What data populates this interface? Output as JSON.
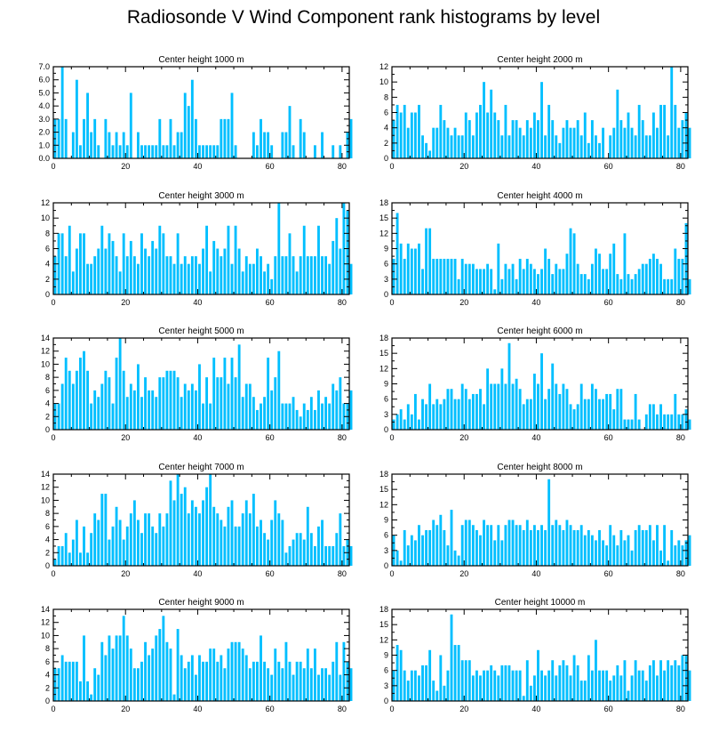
{
  "title": "Radiosonde V Wind Component rank histograms by level",
  "bar_color": "#00bfff",
  "chart_data": [
    {
      "type": "bar",
      "title": "Center height 1000 m",
      "xlim": [
        0,
        82
      ],
      "xticks": [
        0,
        20,
        40,
        60,
        80
      ],
      "ylim": [
        0,
        7
      ],
      "yticks": [
        0,
        1,
        2,
        3,
        4,
        5,
        6,
        7
      ],
      "ytick_labels": [
        "0.0",
        "1.0",
        "2.0",
        "3.0",
        "4.0",
        "5.0",
        "6.0",
        "7.0"
      ],
      "values": [
        3,
        3,
        7,
        3,
        0,
        2,
        6,
        1,
        3,
        5,
        2,
        3,
        1,
        0,
        3,
        2,
        1,
        2,
        1,
        2,
        1,
        5,
        0,
        2,
        1,
        1,
        1,
        1,
        1,
        3,
        1,
        1,
        3,
        1,
        2,
        2,
        5,
        4,
        6,
        3,
        1,
        1,
        1,
        1,
        1,
        1,
        3,
        3,
        3,
        5,
        1,
        0,
        0,
        0,
        0,
        2,
        1,
        3,
        2,
        2,
        1,
        0,
        0,
        2,
        2,
        4,
        1,
        0,
        3,
        2,
        0,
        0,
        1,
        0,
        2,
        0,
        0,
        1,
        0,
        1,
        0,
        2,
        3
      ]
    },
    {
      "type": "bar",
      "title": "Center height 2000 m",
      "xlim": [
        0,
        82
      ],
      "xticks": [
        0,
        20,
        40,
        60,
        80
      ],
      "ylim": [
        0,
        12
      ],
      "yticks": [
        0,
        2,
        4,
        6,
        8,
        10,
        12
      ],
      "ytick_labels": [
        "0",
        "2",
        "4",
        "6",
        "8",
        "10",
        "12"
      ],
      "values": [
        5,
        7,
        6,
        7,
        4,
        6,
        6,
        7,
        3,
        2,
        1,
        4,
        4,
        7,
        5,
        4,
        3,
        4,
        3,
        3,
        6,
        5,
        3,
        6,
        7,
        10,
        6,
        9,
        6,
        5,
        3,
        7,
        3,
        5,
        5,
        4,
        3,
        5,
        4,
        6,
        5,
        10,
        3,
        7,
        5,
        3,
        2,
        4,
        5,
        4,
        4,
        5,
        3,
        6,
        2,
        5,
        3,
        2,
        4,
        0,
        3,
        4,
        9,
        5,
        4,
        6,
        4,
        3,
        7,
        5,
        3,
        3,
        6,
        4,
        7,
        7,
        3,
        12,
        7,
        4,
        5,
        6,
        4
      ]
    },
    {
      "type": "bar",
      "title": "Center height 3000 m",
      "xlim": [
        0,
        82
      ],
      "xticks": [
        0,
        20,
        40,
        60,
        80
      ],
      "ylim": [
        0,
        12
      ],
      "yticks": [
        0,
        2,
        4,
        6,
        8,
        10,
        12
      ],
      "ytick_labels": [
        "0",
        "2",
        "4",
        "6",
        "8",
        "10",
        "12"
      ],
      "values": [
        5,
        8,
        8,
        5,
        9,
        3,
        6,
        8,
        8,
        4,
        4,
        5,
        6,
        9,
        6,
        8,
        7,
        5,
        3,
        8,
        5,
        7,
        5,
        4,
        8,
        6,
        5,
        7,
        6,
        9,
        8,
        5,
        5,
        4,
        8,
        4,
        5,
        4,
        5,
        5,
        4,
        6,
        9,
        3,
        7,
        6,
        5,
        6,
        9,
        4,
        9,
        6,
        3,
        5,
        4,
        4,
        6,
        5,
        3,
        4,
        2,
        5,
        12,
        5,
        5,
        8,
        5,
        3,
        5,
        9,
        5,
        5,
        5,
        9,
        5,
        5,
        4,
        7,
        10,
        6,
        12,
        11,
        4
      ]
    },
    {
      "type": "bar",
      "title": "Center height 4000 m",
      "xlim": [
        0,
        82
      ],
      "xticks": [
        0,
        20,
        40,
        60,
        80
      ],
      "ylim": [
        0,
        18
      ],
      "yticks": [
        0,
        3,
        6,
        9,
        12,
        15,
        18
      ],
      "ytick_labels": [
        "0",
        "3",
        "6",
        "9",
        "12",
        "15",
        "18"
      ],
      "values": [
        7,
        16,
        10,
        7,
        10,
        9,
        9,
        10,
        5,
        13,
        13,
        7,
        7,
        7,
        7,
        7,
        7,
        7,
        3,
        7,
        6,
        6,
        6,
        5,
        5,
        5,
        6,
        5,
        1,
        10,
        3,
        6,
        5,
        6,
        3,
        7,
        5,
        7,
        6,
        5,
        4,
        5,
        9,
        7,
        4,
        6,
        5,
        5,
        8,
        13,
        12,
        6,
        4,
        4,
        3,
        6,
        9,
        8,
        5,
        5,
        8,
        10,
        4,
        3,
        12,
        4,
        3,
        4,
        5,
        6,
        6,
        7,
        8,
        7,
        6,
        3,
        3,
        3,
        9,
        7,
        7,
        14,
        3
      ]
    },
    {
      "type": "bar",
      "title": "Center height 5000 m",
      "xlim": [
        0,
        82
      ],
      "xticks": [
        0,
        20,
        40,
        60,
        80
      ],
      "ylim": [
        0,
        14
      ],
      "yticks": [
        0,
        2,
        4,
        6,
        8,
        10,
        12,
        14
      ],
      "ytick_labels": [
        "0",
        "2",
        "4",
        "6",
        "8",
        "10",
        "12",
        "14"
      ],
      "values": [
        4,
        4,
        7,
        11,
        9,
        7,
        9,
        11,
        12,
        9,
        4,
        6,
        5,
        7,
        9,
        8,
        4,
        11,
        14,
        9,
        5,
        7,
        6,
        10,
        5,
        8,
        6,
        6,
        5,
        8,
        8,
        9,
        9,
        9,
        8,
        5,
        7,
        6,
        7,
        6,
        10,
        4,
        8,
        4,
        11,
        8,
        8,
        11,
        7,
        11,
        8,
        13,
        5,
        7,
        7,
        5,
        3,
        4,
        5,
        11,
        6,
        8,
        12,
        4,
        4,
        4,
        5,
        3,
        2,
        4,
        3,
        5,
        3,
        6,
        4,
        5,
        4,
        7,
        6,
        8,
        4,
        4,
        6
      ]
    },
    {
      "type": "bar",
      "title": "Center height 6000 m",
      "xlim": [
        0,
        82
      ],
      "xticks": [
        0,
        20,
        40,
        60,
        80
      ],
      "ylim": [
        0,
        18
      ],
      "yticks": [
        0,
        3,
        6,
        9,
        12,
        15,
        18
      ],
      "ytick_labels": [
        "0",
        "3",
        "6",
        "9",
        "12",
        "15",
        "18"
      ],
      "values": [
        2,
        3,
        4,
        2,
        5,
        3,
        7,
        2,
        6,
        5,
        9,
        5,
        6,
        5,
        6,
        8,
        8,
        6,
        6,
        9,
        8,
        6,
        7,
        7,
        8,
        5,
        12,
        9,
        9,
        9,
        12,
        9,
        17,
        9,
        10,
        8,
        5,
        6,
        6,
        11,
        9,
        15,
        6,
        8,
        13,
        9,
        7,
        9,
        8,
        5,
        4,
        5,
        9,
        6,
        6,
        9,
        8,
        6,
        6,
        7,
        7,
        4,
        8,
        8,
        2,
        2,
        2,
        7,
        2,
        0,
        3,
        5,
        5,
        3,
        5,
        3,
        3,
        3,
        7,
        3,
        3,
        4,
        2
      ]
    },
    {
      "type": "bar",
      "title": "Center height 7000 m",
      "xlim": [
        0,
        82
      ],
      "xticks": [
        0,
        20,
        40,
        60,
        80
      ],
      "ylim": [
        0,
        14
      ],
      "yticks": [
        0,
        2,
        4,
        6,
        8,
        10,
        12,
        14
      ],
      "ytick_labels": [
        "0",
        "2",
        "4",
        "6",
        "8",
        "10",
        "12",
        "14"
      ],
      "values": [
        1,
        3,
        3,
        5,
        2,
        4,
        7,
        2,
        6,
        2,
        5,
        8,
        7,
        11,
        11,
        4,
        6,
        9,
        7,
        4,
        6,
        8,
        10,
        7,
        5,
        8,
        8,
        6,
        5,
        8,
        6,
        8,
        13,
        10,
        14,
        11,
        12,
        8,
        10,
        9,
        8,
        10,
        12,
        14,
        9,
        8,
        7,
        6,
        9,
        10,
        6,
        6,
        8,
        10,
        8,
        11,
        6,
        7,
        5,
        4,
        7,
        10,
        8,
        7,
        2,
        3,
        4,
        5,
        5,
        4,
        9,
        5,
        3,
        6,
        7,
        3,
        3,
        3,
        5,
        8,
        3,
        4,
        3
      ]
    },
    {
      "type": "bar",
      "title": "Center height 8000 m",
      "xlim": [
        0,
        82
      ],
      "xticks": [
        0,
        20,
        40,
        60,
        80
      ],
      "ylim": [
        0,
        18
      ],
      "yticks": [
        0,
        3,
        6,
        9,
        12,
        15,
        18
      ],
      "ytick_labels": [
        "0",
        "3",
        "6",
        "9",
        "12",
        "15",
        "18"
      ],
      "values": [
        6,
        3,
        1,
        7,
        4,
        6,
        5,
        8,
        6,
        7,
        7,
        9,
        8,
        10,
        7,
        4,
        11,
        3,
        2,
        8,
        9,
        9,
        8,
        7,
        6,
        9,
        8,
        8,
        5,
        8,
        5,
        8,
        9,
        9,
        8,
        8,
        7,
        9,
        7,
        8,
        7,
        8,
        7,
        17,
        8,
        9,
        8,
        7,
        9,
        8,
        7,
        7,
        8,
        6,
        7,
        6,
        5,
        7,
        5,
        4,
        8,
        6,
        4,
        7,
        5,
        6,
        3,
        7,
        8,
        7,
        7,
        8,
        5,
        8,
        3,
        8,
        1,
        7,
        4,
        5,
        4,
        5,
        6
      ]
    },
    {
      "type": "bar",
      "title": "Center height 9000 m",
      "xlim": [
        0,
        82
      ],
      "xticks": [
        0,
        20,
        40,
        60,
        80
      ],
      "ylim": [
        0,
        14
      ],
      "yticks": [
        0,
        2,
        4,
        6,
        8,
        10,
        12,
        14
      ],
      "ytick_labels": [
        "0",
        "2",
        "4",
        "6",
        "8",
        "10",
        "12",
        "14"
      ],
      "values": [
        5,
        5,
        7,
        6,
        6,
        6,
        6,
        3,
        10,
        3,
        1,
        5,
        4,
        9,
        7,
        10,
        8,
        10,
        10,
        13,
        10,
        8,
        5,
        5,
        6,
        9,
        7,
        8,
        10,
        11,
        13,
        9,
        8,
        1,
        11,
        7,
        5,
        6,
        7,
        4,
        7,
        6,
        6,
        8,
        8,
        6,
        7,
        5,
        8,
        9,
        9,
        9,
        8,
        7,
        5,
        6,
        6,
        10,
        6,
        5,
        4,
        8,
        6,
        5,
        9,
        6,
        4,
        6,
        6,
        5,
        8,
        5,
        8,
        4,
        5,
        5,
        4,
        6,
        9,
        4,
        9,
        6,
        5
      ]
    },
    {
      "type": "bar",
      "title": "Center height 10000 m",
      "xlim": [
        0,
        82
      ],
      "xticks": [
        0,
        20,
        40,
        60,
        80
      ],
      "ylim": [
        0,
        18
      ],
      "yticks": [
        0,
        3,
        6,
        9,
        12,
        15,
        18
      ],
      "ytick_labels": [
        "0",
        "3",
        "6",
        "9",
        "12",
        "15",
        "18"
      ],
      "values": [
        6,
        11,
        10,
        6,
        4,
        6,
        6,
        5,
        7,
        7,
        10,
        4,
        2,
        9,
        3,
        6,
        17,
        11,
        11,
        8,
        8,
        8,
        5,
        6,
        5,
        6,
        6,
        7,
        6,
        5,
        7,
        7,
        7,
        6,
        6,
        6,
        1,
        8,
        3,
        5,
        10,
        6,
        5,
        6,
        8,
        5,
        7,
        8,
        7,
        5,
        9,
        7,
        4,
        4,
        9,
        6,
        12,
        6,
        6,
        6,
        4,
        5,
        7,
        5,
        8,
        2,
        5,
        8,
        6,
        6,
        4,
        7,
        8,
        5,
        8,
        6,
        8,
        7,
        8,
        7,
        9,
        9,
        6
      ]
    }
  ]
}
